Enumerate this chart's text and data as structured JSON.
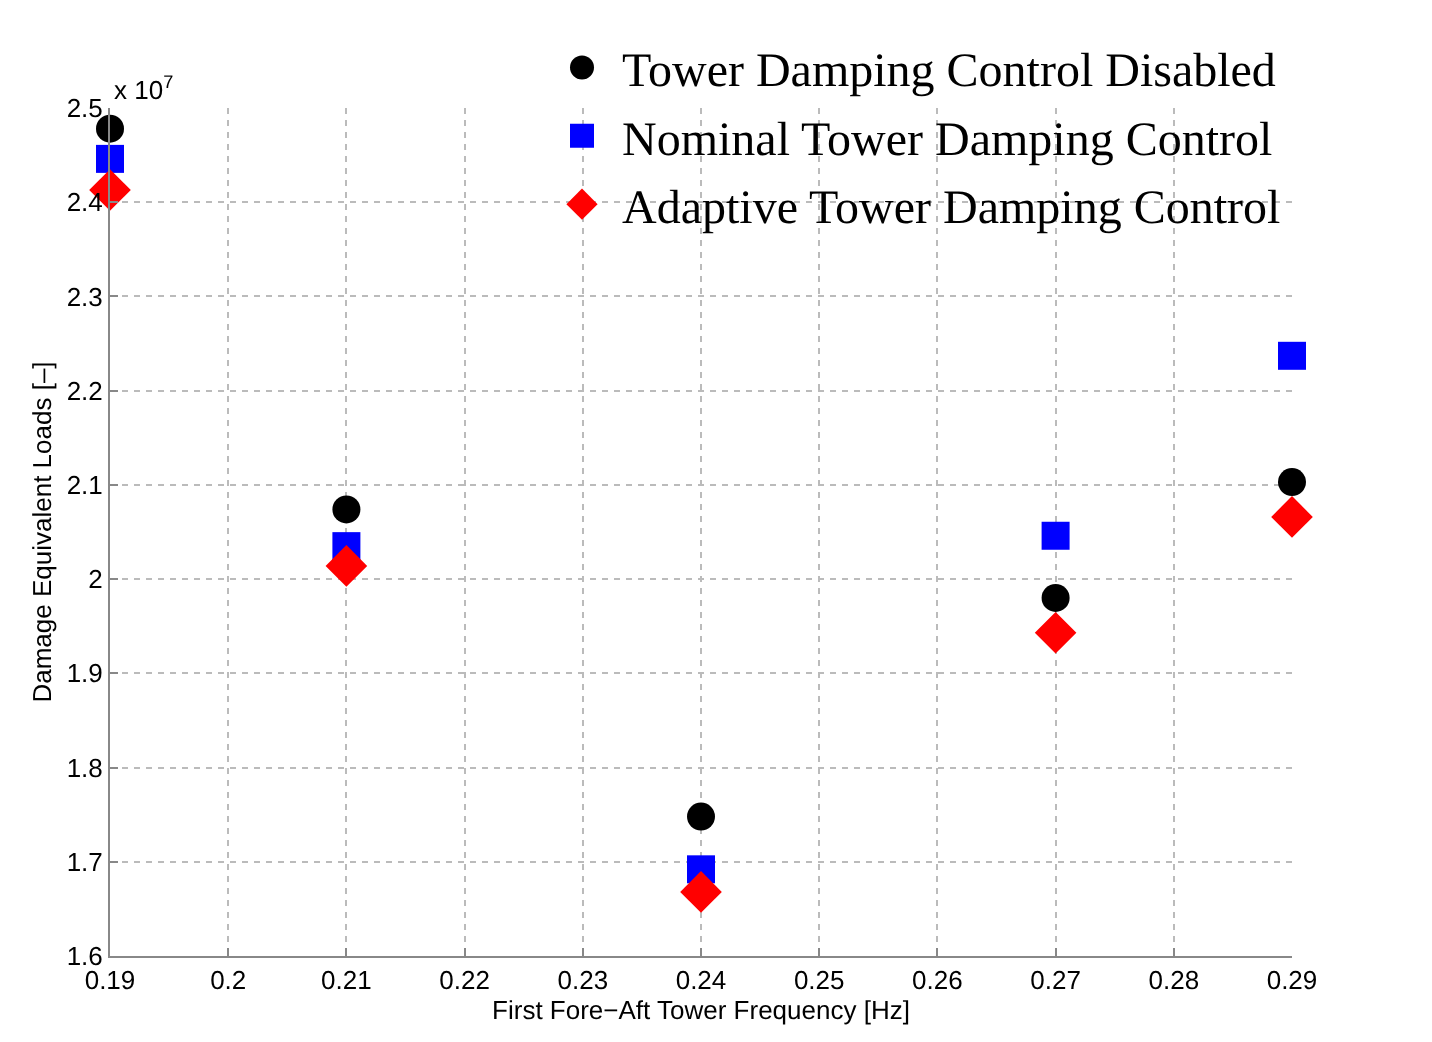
{
  "chart_data": {
    "type": "scatter",
    "xlabel": "First Fore−Aft Tower Frequency [Hz]",
    "ylabel": "Damage Equivalent Loads [–]",
    "annotations": [
      "x 10$^{7}$"
    ],
    "x": [
      0.19,
      0.21,
      0.24,
      0.27,
      0.29
    ],
    "series": [
      {
        "name": "Tower Damping Control Disabled",
        "color": "#000000",
        "marker": "circle",
        "values": [
          2.478,
          2.074,
          1.748,
          1.98,
          2.103
        ]
      },
      {
        "name": "Nominal Tower Damping Control",
        "color": "#0000ff",
        "marker": "square",
        "values": [
          2.446,
          2.035,
          1.692,
          2.046,
          2.237
        ]
      },
      {
        "name": "Adaptive Tower Damping Control",
        "color": "#ff0000",
        "marker": "diamond",
        "values": [
          2.413,
          2.014,
          1.668,
          1.943,
          2.066
        ]
      }
    ],
    "xlim": [
      0.19,
      0.29
    ],
    "xticks": [
      0.19,
      0.2,
      0.21,
      0.22,
      0.23,
      0.24,
      0.25,
      0.26,
      0.27,
      0.28,
      0.29
    ],
    "ylim": [
      1.6,
      2.5
    ],
    "yticks": [
      1.6,
      1.7,
      1.8,
      1.9,
      2,
      2.1,
      2.2,
      2.3,
      2.4,
      2.5
    ],
    "grid": true,
    "legend": "top right"
  }
}
